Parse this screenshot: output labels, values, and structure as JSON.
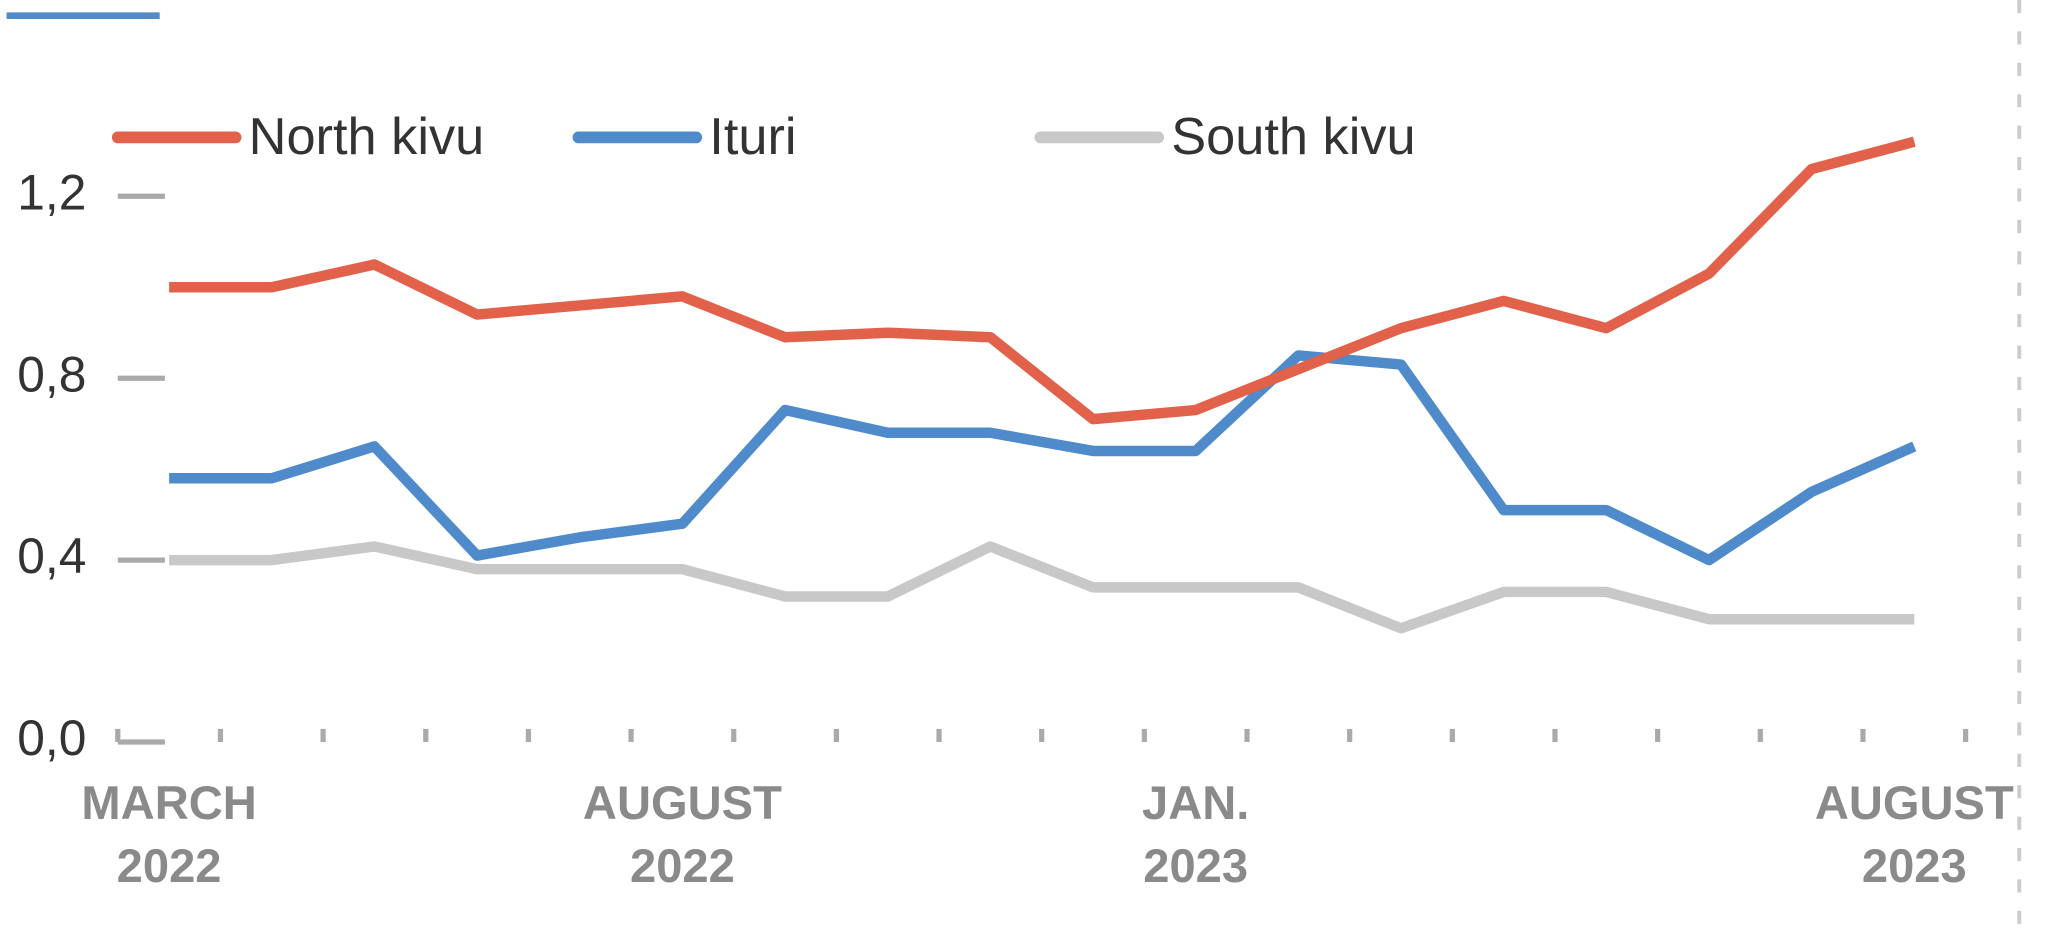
{
  "chart_data": {
    "type": "line",
    "categories": [
      "MARCH 2022",
      null,
      null,
      null,
      null,
      "AUGUST 2022",
      null,
      null,
      null,
      null,
      "JAN. 2023",
      null,
      null,
      null,
      null,
      null,
      null,
      "AUGUST 2023"
    ],
    "series": [
      {
        "name": "North kivu",
        "color": "#e2614b",
        "values": [
          1.0,
          1.0,
          1.05,
          0.94,
          0.96,
          0.98,
          0.89,
          0.9,
          0.89,
          0.71,
          0.73,
          0.82,
          0.91,
          0.97,
          0.91,
          1.03,
          1.26,
          1.32
        ]
      },
      {
        "name": "Ituri",
        "color": "#4f8acb",
        "values": [
          0.58,
          0.58,
          0.65,
          0.41,
          0.45,
          0.48,
          0.73,
          0.68,
          0.68,
          0.64,
          0.64,
          0.85,
          0.83,
          0.51,
          0.51,
          0.4,
          0.55,
          0.65
        ]
      },
      {
        "name": "South kivu",
        "color": "#c8c8c8",
        "values": [
          0.4,
          0.4,
          0.43,
          0.38,
          0.38,
          0.38,
          0.32,
          0.32,
          0.43,
          0.34,
          0.34,
          0.34,
          0.25,
          0.33,
          0.33,
          0.27,
          0.27,
          0.27
        ]
      }
    ],
    "ylim": [
      0,
      1.4
    ],
    "yticks": [
      {
        "value": 0,
        "label": "0,0"
      },
      {
        "value": 0.4,
        "label": "0,4"
      },
      {
        "value": 0.8,
        "label": "0,8"
      },
      {
        "value": 1.2,
        "label": "1,2"
      }
    ],
    "legend": "top"
  }
}
